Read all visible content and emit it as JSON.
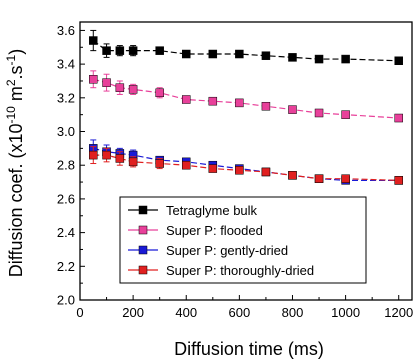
{
  "chart_data": {
    "type": "line",
    "xlabel": "Diffusion time (ms)",
    "ylabel": "Diffusion coef. (x10",
    "ylabel_exp1": "-10",
    "ylabel_mid": " m",
    "ylabel_exp2": "2",
    "ylabel_mid2": ".s",
    "ylabel_exp3": "-1",
    "ylabel_end": ")",
    "xlim": [
      0,
      1250
    ],
    "ylim": [
      2.0,
      3.65
    ],
    "xticks": [
      0,
      200,
      400,
      600,
      800,
      1000,
      1200
    ],
    "yticks": [
      2.0,
      2.2,
      2.4,
      2.6,
      2.8,
      3.0,
      3.2,
      3.4,
      3.6
    ],
    "legend_position": "bottom-center",
    "grid": false,
    "x": [
      50,
      100,
      150,
      200,
      300,
      400,
      500,
      600,
      700,
      800,
      900,
      1000,
      1200
    ],
    "series": [
      {
        "name": "Tetraglyme bulk",
        "color": "#000000",
        "values": [
          3.54,
          3.48,
          3.48,
          3.48,
          3.48,
          3.46,
          3.46,
          3.46,
          3.45,
          3.44,
          3.43,
          3.43,
          3.42
        ],
        "errors": [
          0.06,
          0.04,
          0.03,
          0.03,
          0.02,
          0.02,
          0.01,
          0.01,
          0.01,
          0.01,
          0.01,
          0.01,
          0.01
        ]
      },
      {
        "name": "Super P: flooded",
        "color": "#e8409a",
        "values": [
          3.31,
          3.29,
          3.26,
          3.25,
          3.23,
          3.19,
          3.18,
          3.17,
          3.15,
          3.13,
          3.11,
          3.1,
          3.08
        ],
        "errors": [
          0.05,
          0.05,
          0.04,
          0.03,
          0.03,
          0.02,
          0.01,
          0.01,
          0.01,
          0.01,
          0.01,
          0.01,
          0.01
        ]
      },
      {
        "name": "Super P: gently-dried",
        "color": "#1a1ad6",
        "values": [
          2.9,
          2.88,
          2.87,
          2.86,
          2.83,
          2.82,
          2.8,
          2.78,
          2.76,
          2.74,
          2.72,
          2.71,
          2.71
        ],
        "errors": [
          0.05,
          0.04,
          0.03,
          0.03,
          0.02,
          0.02,
          0.01,
          0.01,
          0.01,
          0.01,
          0.01,
          0.01,
          0.01
        ]
      },
      {
        "name": "Super P: thoroughly-dried",
        "color": "#e02020",
        "values": [
          2.86,
          2.86,
          2.84,
          2.82,
          2.81,
          2.8,
          2.78,
          2.77,
          2.76,
          2.74,
          2.72,
          2.72,
          2.71
        ],
        "errors": [
          0.05,
          0.04,
          0.04,
          0.03,
          0.03,
          0.02,
          0.02,
          0.01,
          0.01,
          0.01,
          0.01,
          0.01,
          0.01
        ]
      }
    ]
  }
}
